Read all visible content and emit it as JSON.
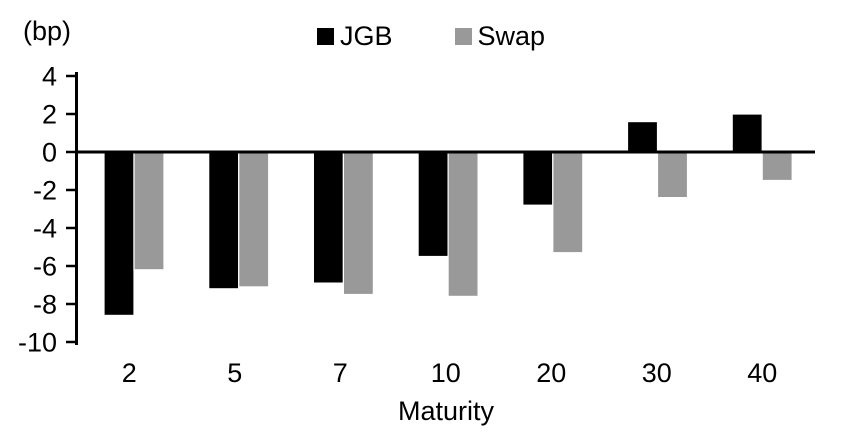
{
  "chart_data": {
    "type": "bar",
    "unit_label": "(bp)",
    "xlabel": "Maturity",
    "categories": [
      "2",
      "5",
      "7",
      "10",
      "20",
      "30",
      "40"
    ],
    "series": [
      {
        "name": "JGB",
        "color": "#000000",
        "values": [
          -8.6,
          -7.2,
          -6.9,
          -5.5,
          -2.8,
          1.6,
          2.0
        ]
      },
      {
        "name": "Swap",
        "color": "#999999",
        "values": [
          -6.2,
          -7.1,
          -7.5,
          -7.6,
          -5.3,
          -2.4,
          -1.5
        ]
      }
    ],
    "ylim": [
      -10,
      4
    ],
    "yticks": [
      4,
      2,
      0,
      -2,
      -4,
      -6,
      -8,
      -10
    ],
    "legend_position": "top",
    "grid": false
  }
}
